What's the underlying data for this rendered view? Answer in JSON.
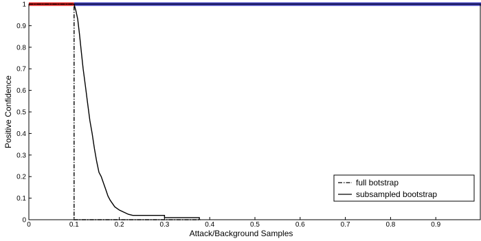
{
  "chart_data": {
    "type": "line",
    "title": "",
    "xlabel": "Attack/Background Samples",
    "ylabel": "Positive Confidence",
    "xlim": [
      0,
      1
    ],
    "ylim": [
      0,
      1
    ],
    "xticks": [
      0,
      0.1,
      0.2,
      0.3,
      0.4,
      0.5,
      0.6,
      0.7,
      0.8,
      0.9
    ],
    "xtick_labels": [
      "0",
      "0.1",
      "0.2",
      "0.3",
      "0.4",
      "0.5",
      "0.6",
      "0.7",
      "0.8",
      "0.9"
    ],
    "yticks": [
      0,
      0.1,
      0.2,
      0.3,
      0.4,
      0.5,
      0.6,
      0.7,
      0.8,
      0.9,
      1
    ],
    "ytick_labels": [
      "0",
      "0.1",
      "0.2",
      "0.3",
      "0.4",
      "0.5",
      "0.6",
      "0.7",
      "0.8",
      "0.9",
      "1"
    ],
    "grid": false,
    "legend_position": "bottom-right",
    "series": [
      {
        "name": "full botstrap",
        "style": "dash-dot",
        "color": "#000000",
        "x": [
          0,
          0.1,
          0.1,
          0.3,
          0.38
        ],
        "y": [
          1,
          1,
          0,
          0,
          0
        ]
      },
      {
        "name": "subsampled bootstrap",
        "style": "solid",
        "color": "#000000",
        "x": [
          0.1,
          0.104,
          0.108,
          0.112,
          0.116,
          0.12,
          0.125,
          0.13,
          0.135,
          0.14,
          0.145,
          0.15,
          0.155,
          0.16,
          0.165,
          0.17,
          0.175,
          0.18,
          0.19,
          0.2,
          0.21,
          0.22,
          0.23,
          0.24,
          0.25,
          0.26,
          0.27,
          0.28,
          0.29,
          0.3,
          0.3,
          0.31,
          0.34,
          0.377,
          0.377
        ],
        "y": [
          1,
          0.97,
          0.93,
          0.86,
          0.78,
          0.7,
          0.62,
          0.54,
          0.46,
          0.4,
          0.33,
          0.27,
          0.22,
          0.2,
          0.17,
          0.14,
          0.11,
          0.09,
          0.06,
          0.045,
          0.035,
          0.025,
          0.02,
          0.02,
          0.02,
          0.02,
          0.02,
          0.02,
          0.02,
          0.02,
          0.01,
          0.01,
          0.01,
          0.01,
          0
        ]
      }
    ],
    "bands": [
      {
        "color": "#e02020",
        "x": [
          0,
          0.1
        ],
        "y": 1
      },
      {
        "color": "#3a3ab8",
        "x": [
          0.1,
          1
        ],
        "y": 1
      }
    ]
  }
}
